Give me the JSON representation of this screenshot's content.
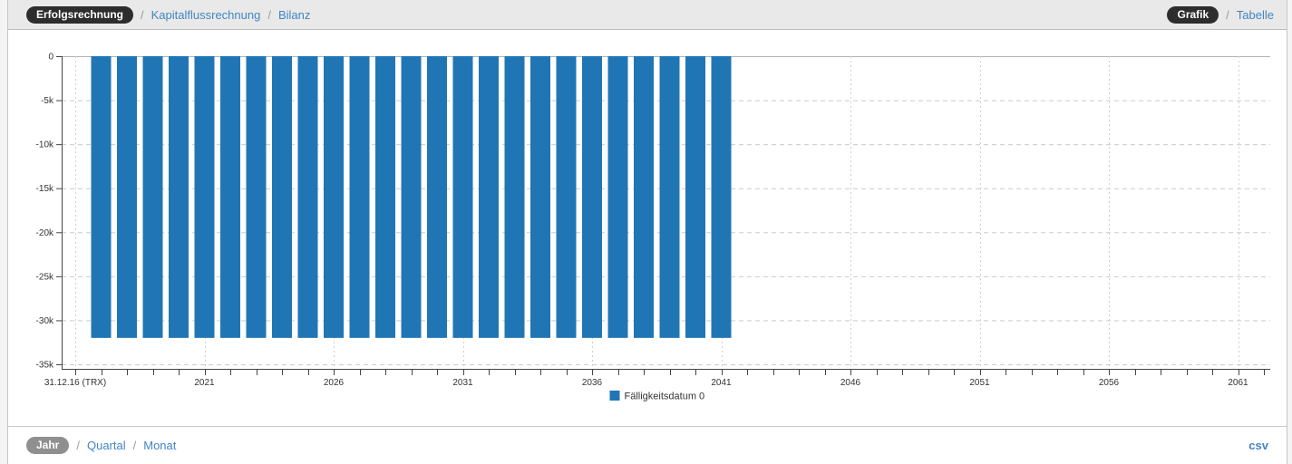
{
  "header": {
    "separator": "/",
    "breadcrumb": {
      "items": [
        {
          "label": "Erfolgsrechnung",
          "active": true
        },
        {
          "label": "Kapitalflussrechnung",
          "active": false
        },
        {
          "label": "Bilanz",
          "active": false
        }
      ]
    },
    "view_toggle": {
      "items": [
        {
          "label": "Grafik",
          "active": true
        },
        {
          "label": "Tabelle",
          "active": false
        }
      ]
    }
  },
  "chart_data": {
    "type": "bar",
    "title": "",
    "x": [
      2017,
      2018,
      2019,
      2020,
      2021,
      2022,
      2023,
      2024,
      2025,
      2026,
      2027,
      2028,
      2029,
      2030,
      2031,
      2032,
      2033,
      2034,
      2035,
      2036,
      2037,
      2038,
      2039,
      2040,
      2041
    ],
    "series": [
      {
        "name": "Fälligkeitsdatum 0",
        "color": "#2076b4",
        "values": [
          -32000,
          -32000,
          -32000,
          -32000,
          -32000,
          -32000,
          -32000,
          -32000,
          -32000,
          -32000,
          -32000,
          -32000,
          -32000,
          -32000,
          -32000,
          -32000,
          -32000,
          -32000,
          -32000,
          -32000,
          -32000,
          -32000,
          -32000,
          -32000,
          -32000
        ]
      }
    ],
    "x_axis": {
      "origin_label": "31.12.16 (TRX)",
      "origin_year": 2016,
      "end_year": 2062,
      "major_tick_years": [
        2021,
        2026,
        2031,
        2036,
        2041,
        2046,
        2051,
        2056,
        2061
      ],
      "minor_interval_years": 1
    },
    "y_axis": {
      "tick_values": [
        0,
        -5000,
        -10000,
        -15000,
        -20000,
        -25000,
        -30000,
        -35000
      ],
      "tick_labels": [
        "0",
        "-5k",
        "-10k",
        "-15k",
        "-20k",
        "-25k",
        "-30k",
        "-35k"
      ],
      "min": -35000,
      "max": 0
    },
    "legend": {
      "label": "Fälligkeitsdatum 0",
      "position": "bottom-center"
    },
    "grid": {
      "style": "dashed",
      "horizontal": true,
      "vertical": true
    }
  },
  "footer": {
    "separator": "/",
    "granularity": {
      "items": [
        {
          "label": "Jahr",
          "active": true
        },
        {
          "label": "Quartal",
          "active": false
        },
        {
          "label": "Monat",
          "active": false
        }
      ]
    },
    "export_label": "csv"
  },
  "colors": {
    "bar": "#2076b4",
    "link": "#4484c4",
    "pill_dark": "#2d2d2d",
    "pill_gray": "#8f8f8f",
    "grid": "#cccccc",
    "axis": "#444444"
  }
}
